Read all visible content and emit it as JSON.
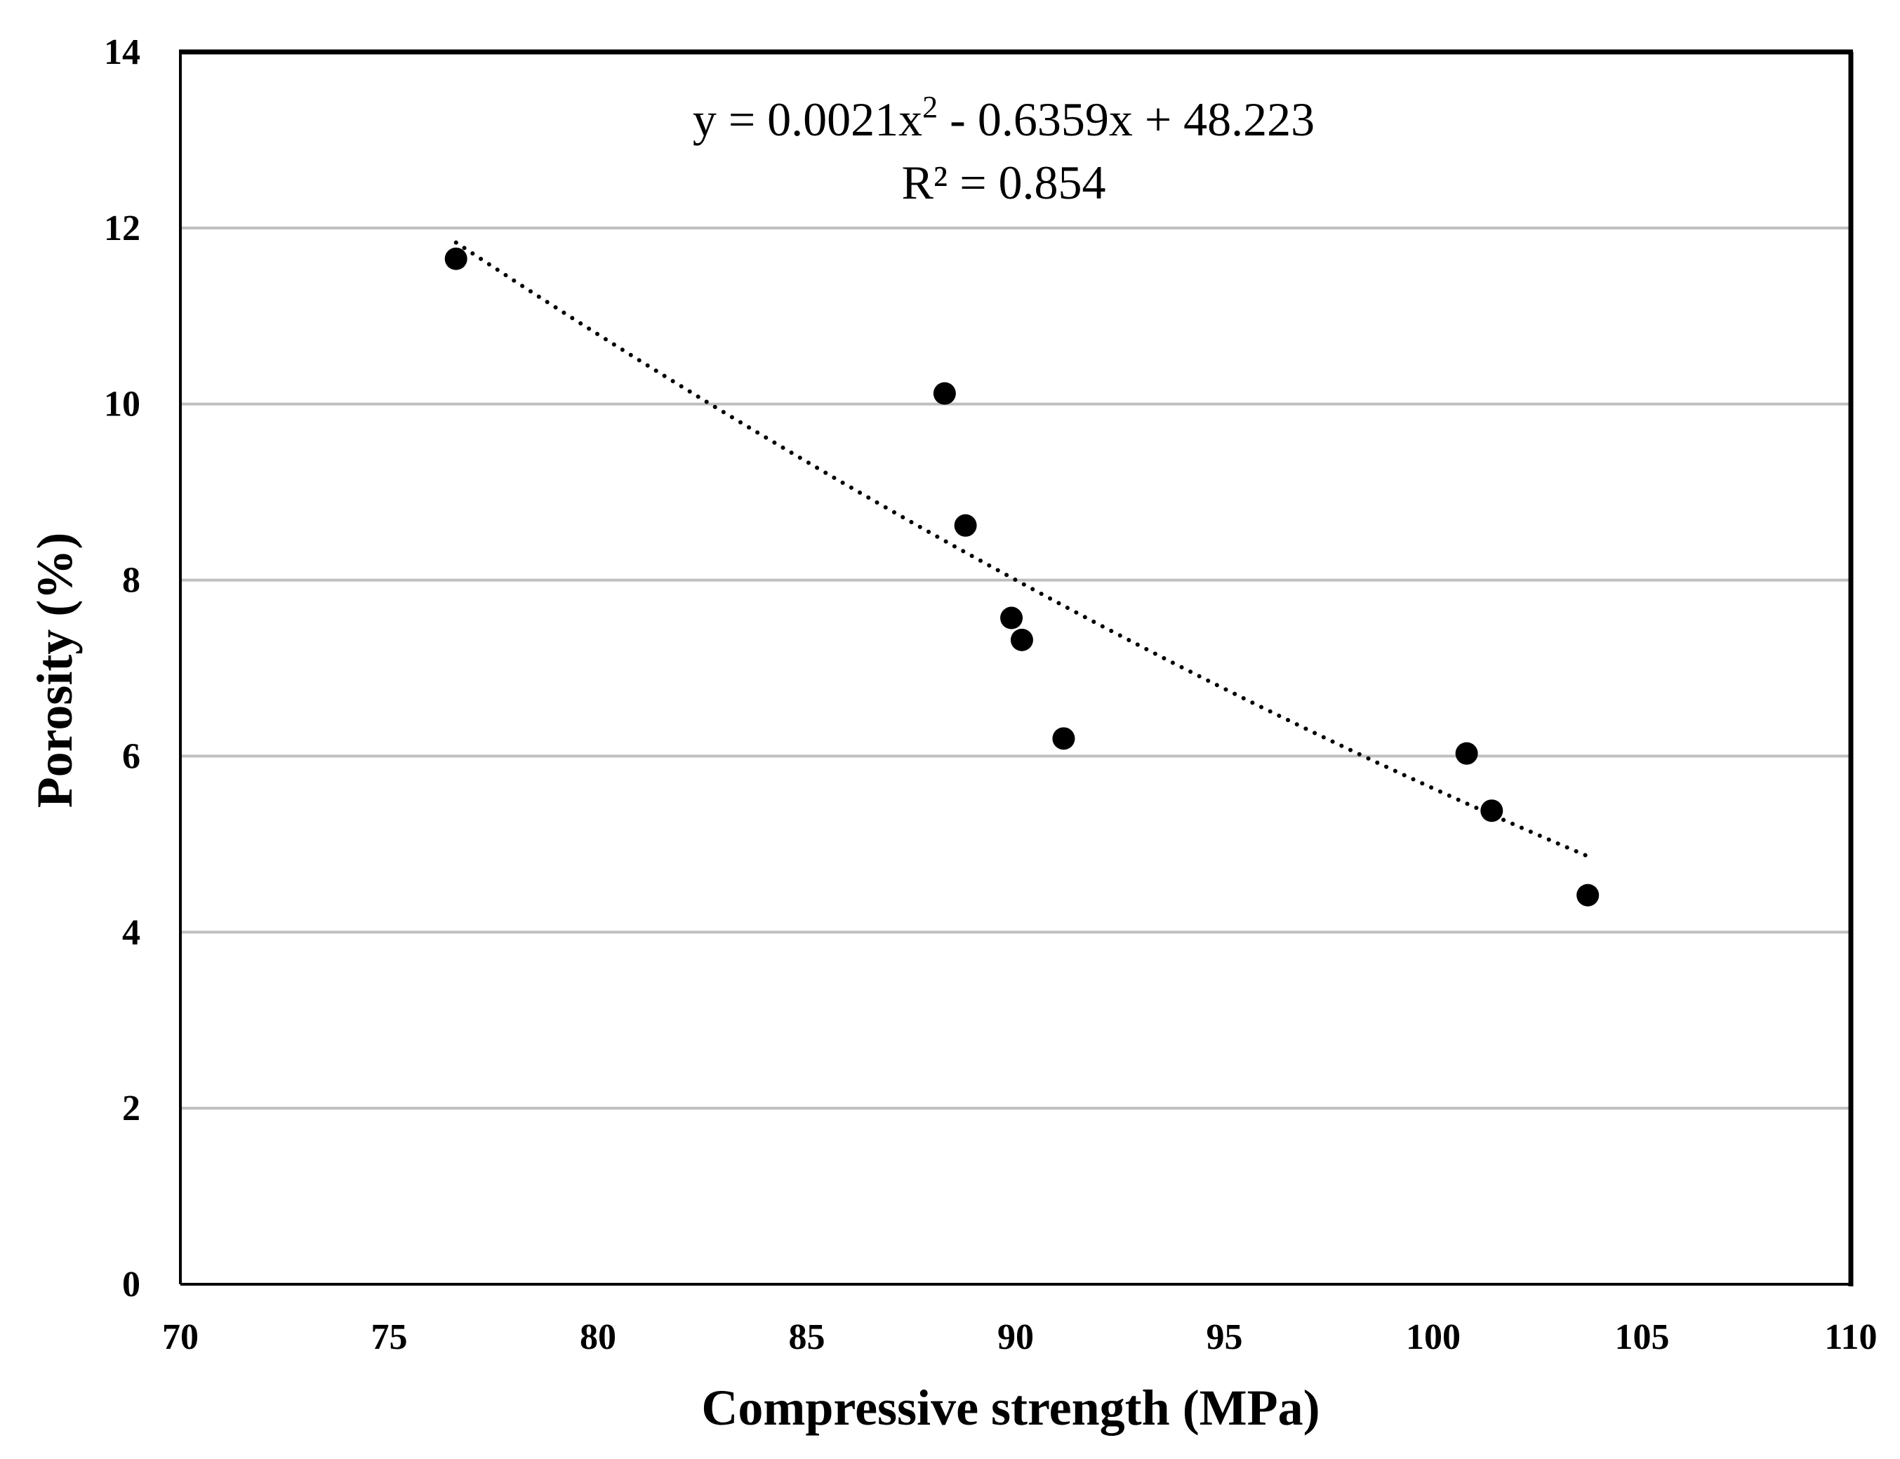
{
  "chart_data": {
    "type": "scatter",
    "title": "",
    "xlabel": "Compressive strength (MPa)",
    "ylabel": "Porosity (%)",
    "xlim": [
      70,
      110
    ],
    "ylim": [
      0,
      14
    ],
    "x_ticks": [
      70,
      75,
      80,
      85,
      90,
      95,
      100,
      105,
      110
    ],
    "y_ticks": [
      0,
      2,
      4,
      6,
      8,
      10,
      12,
      14
    ],
    "x_tick_labels": [
      "70",
      "75",
      "80",
      "85",
      "90",
      "95",
      "100",
      "105",
      "110"
    ],
    "y_tick_labels": [
      "0",
      "2",
      "4",
      "6",
      "8",
      "10",
      "12",
      "14"
    ],
    "grid": "horizontal",
    "series": [
      {
        "name": "Porosity",
        "marker": "circle",
        "color": "#000000",
        "points": [
          {
            "x": 76.6,
            "y": 11.65
          },
          {
            "x": 88.3,
            "y": 10.12
          },
          {
            "x": 88.8,
            "y": 8.62
          },
          {
            "x": 89.9,
            "y": 7.57
          },
          {
            "x": 90.15,
            "y": 7.32
          },
          {
            "x": 91.15,
            "y": 6.2
          },
          {
            "x": 100.8,
            "y": 6.03
          },
          {
            "x": 101.4,
            "y": 5.38
          },
          {
            "x": 103.7,
            "y": 4.42
          }
        ]
      }
    ],
    "trendline": {
      "type": "polynomial",
      "order": 2,
      "style": "dotted",
      "color": "#000000",
      "coefficients": {
        "a": 0.0021,
        "b": -0.6359,
        "c": 48.223
      },
      "x_range": [
        76.6,
        103.7
      ],
      "equation_label": {
        "prefix": "y = 0.0021x",
        "exponent": "2",
        "suffix": " - 0.6359x + 48.223"
      },
      "r2_label": "R² = 0.854"
    },
    "colors": {
      "gridline": "#bfbfbf",
      "axis": "#000000",
      "frame": "#000000",
      "background": "#ffffff"
    }
  }
}
